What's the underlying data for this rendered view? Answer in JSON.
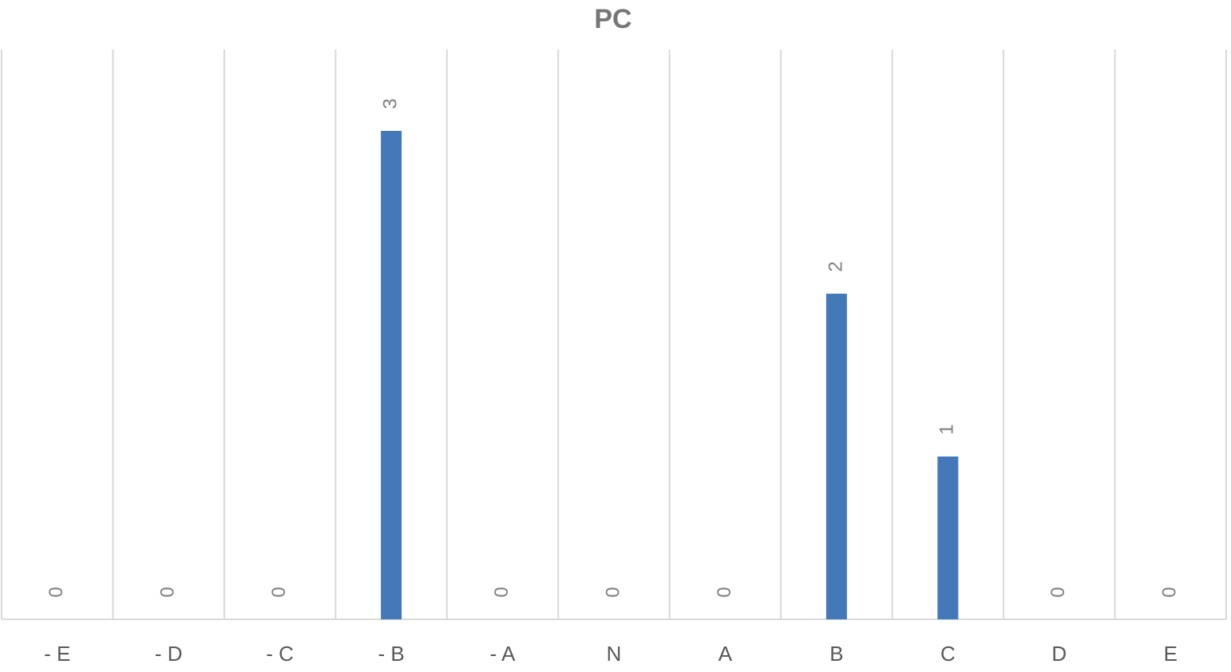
{
  "chart_data": {
    "type": "bar",
    "title": "PC",
    "categories": [
      "- E",
      "- D",
      "- C",
      "- B",
      "- A",
      "N",
      "A",
      "B",
      "C",
      "D",
      "E"
    ],
    "values": [
      0,
      0,
      0,
      3,
      0,
      0,
      0,
      2,
      1,
      0,
      0
    ],
    "color": "#4479b9",
    "ylim": [
      0,
      3.5
    ]
  }
}
